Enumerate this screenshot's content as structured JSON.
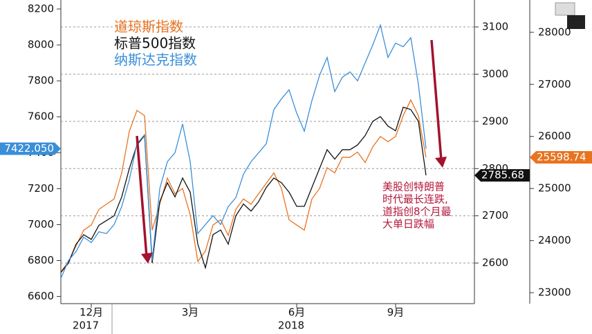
{
  "chart_data": {
    "type": "line",
    "categories": [
      null,
      null,
      null,
      null,
      "12月",
      null,
      null,
      null,
      null,
      null,
      null,
      null,
      null,
      null,
      null,
      null,
      null,
      "3月",
      null,
      null,
      null,
      null,
      null,
      null,
      null,
      null,
      null,
      null,
      null,
      null,
      null,
      "6月",
      null,
      null,
      null,
      null,
      null,
      null,
      null,
      null,
      null,
      null,
      null,
      null,
      "9月",
      null,
      null,
      null,
      null
    ],
    "x_group_labels": [
      "2017",
      "2018"
    ],
    "series": [
      {
        "name": "道琼斯指数",
        "color": "#e8731f",
        "axis": "y3",
        "last_label": "25598.74",
        "values": [
          23400,
          23600,
          23900,
          24200,
          24300,
          24600,
          24700,
          24800,
          25300,
          26100,
          26500,
          26400,
          24200,
          24700,
          25200,
          24900,
          25000,
          24500,
          23600,
          23800,
          24300,
          24400,
          24100,
          24600,
          24800,
          24700,
          24900,
          25100,
          25300,
          25000,
          24400,
          24300,
          24200,
          24800,
          25000,
          25400,
          25300,
          25600,
          25600,
          25700,
          25500,
          25800,
          26000,
          25900,
          26000,
          26400,
          26700,
          26400,
          25598.74
        ]
      },
      {
        "name": "标普500指数",
        "color": "#111111",
        "axis": "y2",
        "last_label": "2785.68",
        "values": [
          2580,
          2600,
          2640,
          2660,
          2650,
          2680,
          2690,
          2700,
          2740,
          2800,
          2850,
          2870,
          2600,
          2730,
          2770,
          2740,
          2780,
          2750,
          2640,
          2590,
          2660,
          2670,
          2640,
          2700,
          2725,
          2710,
          2730,
          2760,
          2780,
          2770,
          2750,
          2720,
          2720,
          2760,
          2800,
          2840,
          2820,
          2840,
          2840,
          2850,
          2870,
          2900,
          2910,
          2890,
          2880,
          2930,
          2925,
          2900,
          2785.68
        ]
      },
      {
        "name": "纳斯达克指数",
        "color": "#3a8fd9",
        "axis": "y",
        "last_label": "7422.050",
        "values": [
          6700,
          6800,
          6850,
          6930,
          6900,
          6960,
          6950,
          7000,
          7100,
          7250,
          7450,
          7500,
          6800,
          7200,
          7350,
          7400,
          7560,
          7350,
          6950,
          7000,
          7050,
          7000,
          7100,
          7150,
          7280,
          7350,
          7400,
          7450,
          7640,
          7700,
          7750,
          7620,
          7520,
          7690,
          7830,
          7930,
          7740,
          7820,
          7850,
          7800,
          7900,
          8000,
          8110,
          7930,
          8010,
          7990,
          8040,
          7780,
          7422.05
        ]
      }
    ],
    "ylim": [
      6560,
      8250
    ],
    "yticks": [
      6600,
      6800,
      7000,
      7200,
      7400,
      7600,
      7800,
      8000,
      8200
    ],
    "y2lim": [
      2514,
      3157
    ],
    "y2ticks": [
      2600,
      2700,
      2800,
      2900,
      3000,
      3100
    ],
    "y3lim": [
      22790,
      28620
    ],
    "y3ticks": [
      23000,
      24000,
      25000,
      26000,
      27000,
      28000
    ],
    "grid": true,
    "annotation": [
      "美股创特朗普",
      "时代最长连跌,",
      "道指创8个月最",
      "大单日跌幅"
    ]
  }
}
